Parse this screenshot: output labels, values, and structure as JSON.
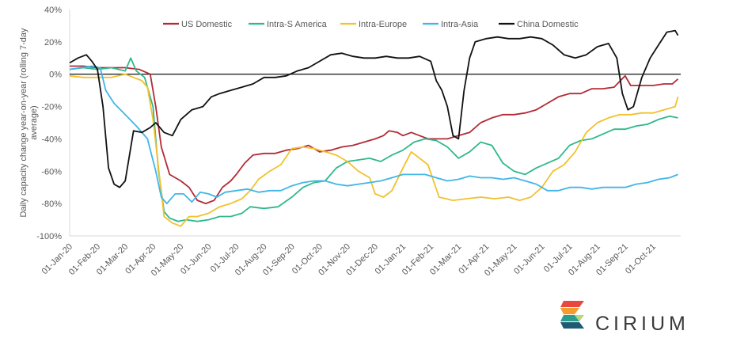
{
  "chart_data": {
    "type": "line",
    "title": "",
    "ylabel": "Daily capacity change year-on-year (rolling 7-day average)",
    "xlabel": "",
    "ylim": [
      -100,
      40
    ],
    "yticks": [
      "40%",
      "20%",
      "0%",
      "-20%",
      "-40%",
      "-60%",
      "-80%",
      "-100%"
    ],
    "xticks": [
      "01-Jan-20",
      "01-Feb-20",
      "01-Mar-20",
      "01-Apr-20",
      "01-May-20",
      "01-Jun-20",
      "01-Jul-20",
      "01-Aug-20",
      "01-Sep-20",
      "01-Oct-20",
      "01-Nov-20",
      "01-Dec-20",
      "01-Jan-21",
      "01-Feb-21",
      "01-Mar-21",
      "01-Apr-21",
      "01-May-21",
      "01-Jun-21",
      "01-Jul-21",
      "01-Aug-21",
      "01-Sep-21",
      "01-Oct-21"
    ],
    "legend_position": "top",
    "grid": false,
    "x_unit": "months since 01-Jan-20",
    "series": [
      {
        "name": "US Domestic",
        "color": "#b22a36",
        "points": [
          [
            0,
            5
          ],
          [
            0.5,
            5
          ],
          [
            1,
            4
          ],
          [
            1.5,
            4
          ],
          [
            2,
            4
          ],
          [
            2.5,
            3
          ],
          [
            2.9,
            0
          ],
          [
            3.1,
            -20
          ],
          [
            3.3,
            -45
          ],
          [
            3.6,
            -62
          ],
          [
            4,
            -66
          ],
          [
            4.3,
            -70
          ],
          [
            4.6,
            -78
          ],
          [
            4.9,
            -80
          ],
          [
            5.2,
            -78
          ],
          [
            5.5,
            -70
          ],
          [
            5.8,
            -66
          ],
          [
            6,
            -62
          ],
          [
            6.3,
            -55
          ],
          [
            6.6,
            -50
          ],
          [
            7,
            -49
          ],
          [
            7.4,
            -49
          ],
          [
            7.8,
            -47
          ],
          [
            8.2,
            -46
          ],
          [
            8.6,
            -44
          ],
          [
            9,
            -48
          ],
          [
            9.4,
            -47
          ],
          [
            9.8,
            -45
          ],
          [
            10.2,
            -44
          ],
          [
            10.6,
            -42
          ],
          [
            11,
            -40
          ],
          [
            11.3,
            -38
          ],
          [
            11.5,
            -35
          ],
          [
            11.8,
            -36
          ],
          [
            12,
            -38
          ],
          [
            12.3,
            -36
          ],
          [
            12.6,
            -38
          ],
          [
            12.9,
            -40
          ],
          [
            13.2,
            -40
          ],
          [
            13.6,
            -40
          ],
          [
            14,
            -38
          ],
          [
            14.4,
            -36
          ],
          [
            14.8,
            -30
          ],
          [
            15.2,
            -27
          ],
          [
            15.6,
            -25
          ],
          [
            16,
            -25
          ],
          [
            16.4,
            -24
          ],
          [
            16.8,
            -22
          ],
          [
            17.2,
            -18
          ],
          [
            17.6,
            -14
          ],
          [
            18,
            -12
          ],
          [
            18.4,
            -12
          ],
          [
            18.8,
            -9
          ],
          [
            19.2,
            -9
          ],
          [
            19.6,
            -8
          ],
          [
            20,
            -1
          ],
          [
            20.2,
            -7
          ],
          [
            20.6,
            -7
          ],
          [
            21,
            -7
          ],
          [
            21.4,
            -6
          ],
          [
            21.7,
            -6
          ],
          [
            21.9,
            -3
          ]
        ]
      },
      {
        "name": "Intra-S America",
        "color": "#2fb88a",
        "points": [
          [
            0,
            3
          ],
          [
            0.5,
            4
          ],
          [
            1,
            3
          ],
          [
            1.5,
            4
          ],
          [
            2,
            2
          ],
          [
            2.2,
            10
          ],
          [
            2.4,
            2
          ],
          [
            2.7,
            -2
          ],
          [
            3,
            -20
          ],
          [
            3.2,
            -60
          ],
          [
            3.4,
            -85
          ],
          [
            3.6,
            -89
          ],
          [
            3.9,
            -91
          ],
          [
            4.2,
            -90
          ],
          [
            4.6,
            -91
          ],
          [
            5,
            -90
          ],
          [
            5.4,
            -88
          ],
          [
            5.8,
            -88
          ],
          [
            6.2,
            -86
          ],
          [
            6.5,
            -82
          ],
          [
            7,
            -83
          ],
          [
            7.5,
            -82
          ],
          [
            8,
            -76
          ],
          [
            8.4,
            -70
          ],
          [
            8.8,
            -67
          ],
          [
            9.2,
            -66
          ],
          [
            9.6,
            -58
          ],
          [
            10,
            -54
          ],
          [
            10.4,
            -53
          ],
          [
            10.8,
            -52
          ],
          [
            11.2,
            -54
          ],
          [
            11.6,
            -50
          ],
          [
            12,
            -47
          ],
          [
            12.4,
            -42
          ],
          [
            12.8,
            -40
          ],
          [
            13.2,
            -41
          ],
          [
            13.6,
            -45
          ],
          [
            14,
            -52
          ],
          [
            14.4,
            -48
          ],
          [
            14.8,
            -42
          ],
          [
            15.2,
            -44
          ],
          [
            15.6,
            -55
          ],
          [
            16,
            -60
          ],
          [
            16.4,
            -62
          ],
          [
            16.8,
            -58
          ],
          [
            17.2,
            -55
          ],
          [
            17.6,
            -52
          ],
          [
            18,
            -44
          ],
          [
            18.4,
            -41
          ],
          [
            18.8,
            -40
          ],
          [
            19.2,
            -37
          ],
          [
            19.6,
            -34
          ],
          [
            20,
            -34
          ],
          [
            20.4,
            -32
          ],
          [
            20.8,
            -31
          ],
          [
            21.2,
            -28
          ],
          [
            21.6,
            -26
          ],
          [
            21.9,
            -27
          ]
        ]
      },
      {
        "name": "Intra-Europe",
        "color": "#f2c12e",
        "points": [
          [
            0,
            -1
          ],
          [
            0.5,
            -2
          ],
          [
            1,
            -2
          ],
          [
            1.5,
            -2
          ],
          [
            2,
            0
          ],
          [
            2.3,
            -2
          ],
          [
            2.6,
            -4
          ],
          [
            2.8,
            -8
          ],
          [
            3,
            -28
          ],
          [
            3.2,
            -58
          ],
          [
            3.4,
            -88
          ],
          [
            3.7,
            -92
          ],
          [
            4,
            -94
          ],
          [
            4.3,
            -88
          ],
          [
            4.6,
            -88
          ],
          [
            5,
            -86
          ],
          [
            5.4,
            -82
          ],
          [
            5.8,
            -80
          ],
          [
            6.2,
            -77
          ],
          [
            6.5,
            -72
          ],
          [
            6.8,
            -65
          ],
          [
            7.2,
            -60
          ],
          [
            7.6,
            -56
          ],
          [
            8,
            -46
          ],
          [
            8.4,
            -45
          ],
          [
            8.8,
            -46
          ],
          [
            9.2,
            -48
          ],
          [
            9.6,
            -50
          ],
          [
            10,
            -54
          ],
          [
            10.4,
            -60
          ],
          [
            10.8,
            -64
          ],
          [
            11,
            -74
          ],
          [
            11.3,
            -76
          ],
          [
            11.6,
            -72
          ],
          [
            12,
            -58
          ],
          [
            12.3,
            -48
          ],
          [
            12.6,
            -52
          ],
          [
            12.9,
            -56
          ],
          [
            13.3,
            -76
          ],
          [
            13.8,
            -78
          ],
          [
            14.3,
            -77
          ],
          [
            14.8,
            -76
          ],
          [
            15.3,
            -77
          ],
          [
            15.8,
            -76
          ],
          [
            16.2,
            -78
          ],
          [
            16.6,
            -76
          ],
          [
            17,
            -70
          ],
          [
            17.4,
            -60
          ],
          [
            17.8,
            -56
          ],
          [
            18.2,
            -48
          ],
          [
            18.6,
            -36
          ],
          [
            19,
            -30
          ],
          [
            19.4,
            -27
          ],
          [
            19.8,
            -25
          ],
          [
            20.2,
            -25
          ],
          [
            20.6,
            -24
          ],
          [
            21,
            -24
          ],
          [
            21.4,
            -22
          ],
          [
            21.8,
            -20
          ],
          [
            21.9,
            -14
          ]
        ]
      },
      {
        "name": "Intra-Asia",
        "color": "#41b6e6",
        "points": [
          [
            0,
            3
          ],
          [
            0.4,
            4
          ],
          [
            0.8,
            5
          ],
          [
            1.1,
            4
          ],
          [
            1.3,
            -10
          ],
          [
            1.6,
            -18
          ],
          [
            2,
            -25
          ],
          [
            2.4,
            -32
          ],
          [
            2.8,
            -40
          ],
          [
            3.1,
            -60
          ],
          [
            3.3,
            -76
          ],
          [
            3.5,
            -80
          ],
          [
            3.8,
            -74
          ],
          [
            4.1,
            -74
          ],
          [
            4.4,
            -79
          ],
          [
            4.7,
            -73
          ],
          [
            5,
            -74
          ],
          [
            5.3,
            -76
          ],
          [
            5.6,
            -73
          ],
          [
            6,
            -72
          ],
          [
            6.4,
            -71
          ],
          [
            6.8,
            -73
          ],
          [
            7.2,
            -72
          ],
          [
            7.6,
            -72
          ],
          [
            8,
            -69
          ],
          [
            8.4,
            -67
          ],
          [
            8.8,
            -66
          ],
          [
            9.2,
            -66
          ],
          [
            9.6,
            -68
          ],
          [
            10,
            -69
          ],
          [
            10.4,
            -68
          ],
          [
            10.8,
            -67
          ],
          [
            11.2,
            -66
          ],
          [
            11.6,
            -64
          ],
          [
            12,
            -62
          ],
          [
            12.4,
            -62
          ],
          [
            12.8,
            -62
          ],
          [
            13.2,
            -64
          ],
          [
            13.6,
            -66
          ],
          [
            14,
            -65
          ],
          [
            14.4,
            -63
          ],
          [
            14.8,
            -64
          ],
          [
            15.2,
            -64
          ],
          [
            15.6,
            -65
          ],
          [
            16,
            -64
          ],
          [
            16.4,
            -66
          ],
          [
            16.8,
            -68
          ],
          [
            17.2,
            -72
          ],
          [
            17.6,
            -72
          ],
          [
            18,
            -70
          ],
          [
            18.4,
            -70
          ],
          [
            18.8,
            -71
          ],
          [
            19.2,
            -70
          ],
          [
            19.6,
            -70
          ],
          [
            20,
            -70
          ],
          [
            20.4,
            -68
          ],
          [
            20.8,
            -67
          ],
          [
            21.2,
            -65
          ],
          [
            21.6,
            -64
          ],
          [
            21.9,
            -62
          ]
        ]
      },
      {
        "name": "China Domestic",
        "color": "#111111",
        "points": [
          [
            0,
            7
          ],
          [
            0.3,
            10
          ],
          [
            0.6,
            12
          ],
          [
            0.8,
            8
          ],
          [
            1,
            3
          ],
          [
            1.2,
            -20
          ],
          [
            1.4,
            -58
          ],
          [
            1.6,
            -68
          ],
          [
            1.8,
            -70
          ],
          [
            2,
            -66
          ],
          [
            2.3,
            -35
          ],
          [
            2.6,
            -36
          ],
          [
            2.9,
            -33
          ],
          [
            3.1,
            -30
          ],
          [
            3.4,
            -36
          ],
          [
            3.7,
            -38
          ],
          [
            4,
            -28
          ],
          [
            4.4,
            -22
          ],
          [
            4.8,
            -20
          ],
          [
            5.1,
            -14
          ],
          [
            5.4,
            -12
          ],
          [
            5.8,
            -10
          ],
          [
            6.2,
            -8
          ],
          [
            6.6,
            -6
          ],
          [
            7,
            -2
          ],
          [
            7.4,
            -2
          ],
          [
            7.8,
            -1
          ],
          [
            8.2,
            2
          ],
          [
            8.6,
            4
          ],
          [
            9,
            8
          ],
          [
            9.4,
            12
          ],
          [
            9.8,
            13
          ],
          [
            10.2,
            11
          ],
          [
            10.6,
            10
          ],
          [
            11,
            10
          ],
          [
            11.4,
            11
          ],
          [
            11.8,
            10
          ],
          [
            12.2,
            10
          ],
          [
            12.6,
            11
          ],
          [
            13,
            8
          ],
          [
            13.2,
            -4
          ],
          [
            13.4,
            -10
          ],
          [
            13.6,
            -20
          ],
          [
            13.8,
            -38
          ],
          [
            14,
            -40
          ],
          [
            14.2,
            -10
          ],
          [
            14.4,
            10
          ],
          [
            14.6,
            20
          ],
          [
            15,
            22
          ],
          [
            15.4,
            23
          ],
          [
            15.8,
            22
          ],
          [
            16.2,
            22
          ],
          [
            16.6,
            23
          ],
          [
            17,
            22
          ],
          [
            17.4,
            18
          ],
          [
            17.8,
            12
          ],
          [
            18.2,
            10
          ],
          [
            18.6,
            12
          ],
          [
            19,
            17
          ],
          [
            19.4,
            19
          ],
          [
            19.7,
            10
          ],
          [
            19.9,
            -12
          ],
          [
            20.1,
            -22
          ],
          [
            20.3,
            -20
          ],
          [
            20.6,
            -2
          ],
          [
            20.9,
            10
          ],
          [
            21.2,
            18
          ],
          [
            21.5,
            26
          ],
          [
            21.8,
            27
          ],
          [
            21.9,
            24
          ]
        ]
      }
    ]
  },
  "brand": {
    "name": "CIRIUM",
    "logo_colors": [
      "#e8483f",
      "#f29e2e",
      "#2a9d8f",
      "#1f5a73",
      "#b7d97a"
    ]
  }
}
